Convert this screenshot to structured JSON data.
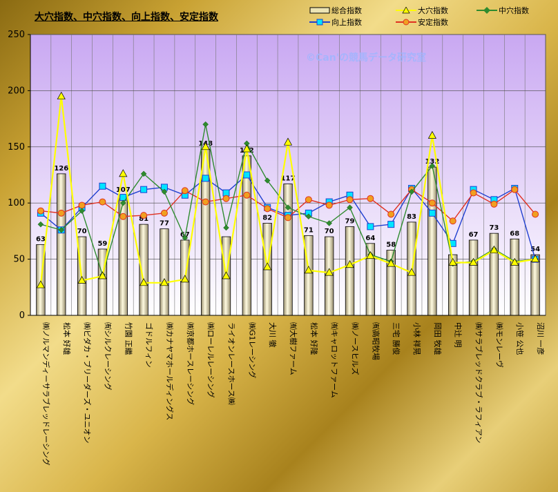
{
  "chart_data": {
    "type": "bar+line",
    "title": "大穴指数、中穴指数、向上指数、安定指数",
    "watermark": "©Can'の競馬データ研究室",
    "ylim": [
      0,
      250
    ],
    "yticks": [
      0,
      50,
      100,
      150,
      200,
      250
    ],
    "grid": true,
    "legend": "top-right",
    "categories": [
      "㈱ノルマンディーサラブレッドレーシング",
      "松本 好雄",
      "㈱ビダカ・ブリーダーズ・ユニオン",
      "㈲シルクレーシング",
      "竹園 正繼",
      "ゴドルフィン",
      "㈱カナヤマホールディングス",
      "㈱京都ホースレーシング",
      "㈱ローレルレーシング",
      "ライオンレースホース㈱",
      "㈱G1レーシング",
      "大川 徹",
      "㈲大樹ファーム",
      "松本 好隆",
      "㈲キャロットファーム",
      "㈱ノースヒルズ",
      "㈲高昭牧場",
      "三宅 勝俊",
      "小林 祥晃",
      "岡田 牧雄",
      "中辻 明",
      "㈱サラブレッドクラブ・ラフィアン",
      "㈱モンレーヴ",
      "小笹 公也",
      "沼川 一彦"
    ],
    "series": [
      {
        "name": "総合指数",
        "kind": "bar",
        "color": "#ece4b4",
        "values": [
          63,
          126,
          70,
          59,
          107,
          81,
          77,
          67,
          148,
          70,
          142,
          82,
          117,
          71,
          70,
          79,
          64,
          58,
          83,
          132,
          54,
          67,
          73,
          68,
          54
        ],
        "labels": [
          "63",
          "126",
          "70",
          "59",
          "107",
          "81",
          "77",
          "67",
          "148",
          "",
          "142",
          "82",
          "117",
          "71",
          "70",
          "79",
          "64",
          "58",
          "83",
          "132",
          "",
          "67",
          "73",
          "68",
          "54"
        ]
      },
      {
        "name": "大穴指数",
        "kind": "line",
        "color": "#ffff00",
        "marker": "triangle",
        "values": [
          27,
          195,
          31,
          35,
          126,
          29,
          29,
          32,
          150,
          35,
          148,
          43,
          154,
          40,
          38,
          45,
          53,
          46,
          38,
          160,
          47,
          47,
          58,
          47,
          50
        ]
      },
      {
        "name": "中穴指数",
        "kind": "line",
        "color": "#2e8b2e",
        "marker": "diamond",
        "values": [
          81,
          76,
          93,
          36,
          100,
          126,
          110,
          69,
          170,
          78,
          153,
          120,
          96,
          88,
          82,
          96,
          54,
          48,
          110,
          133,
          46,
          48,
          59,
          48,
          50
        ]
      },
      {
        "name": "向上指数",
        "kind": "line",
        "color": "#1f3fd0",
        "marker": "square",
        "values": [
          91,
          76,
          96,
          115,
          105,
          112,
          114,
          107,
          122,
          109,
          125,
          96,
          89,
          91,
          101,
          107,
          79,
          81,
          113,
          91,
          64,
          112,
          103,
          113,
          50
        ]
      },
      {
        "name": "安定指数",
        "kind": "line",
        "color": "#e03020",
        "marker": "circle",
        "values": [
          93,
          91,
          98,
          101,
          88,
          89,
          91,
          111,
          101,
          104,
          107,
          95,
          87,
          103,
          98,
          103,
          104,
          90,
          112,
          100,
          84,
          109,
          99,
          112,
          90
        ]
      }
    ]
  }
}
